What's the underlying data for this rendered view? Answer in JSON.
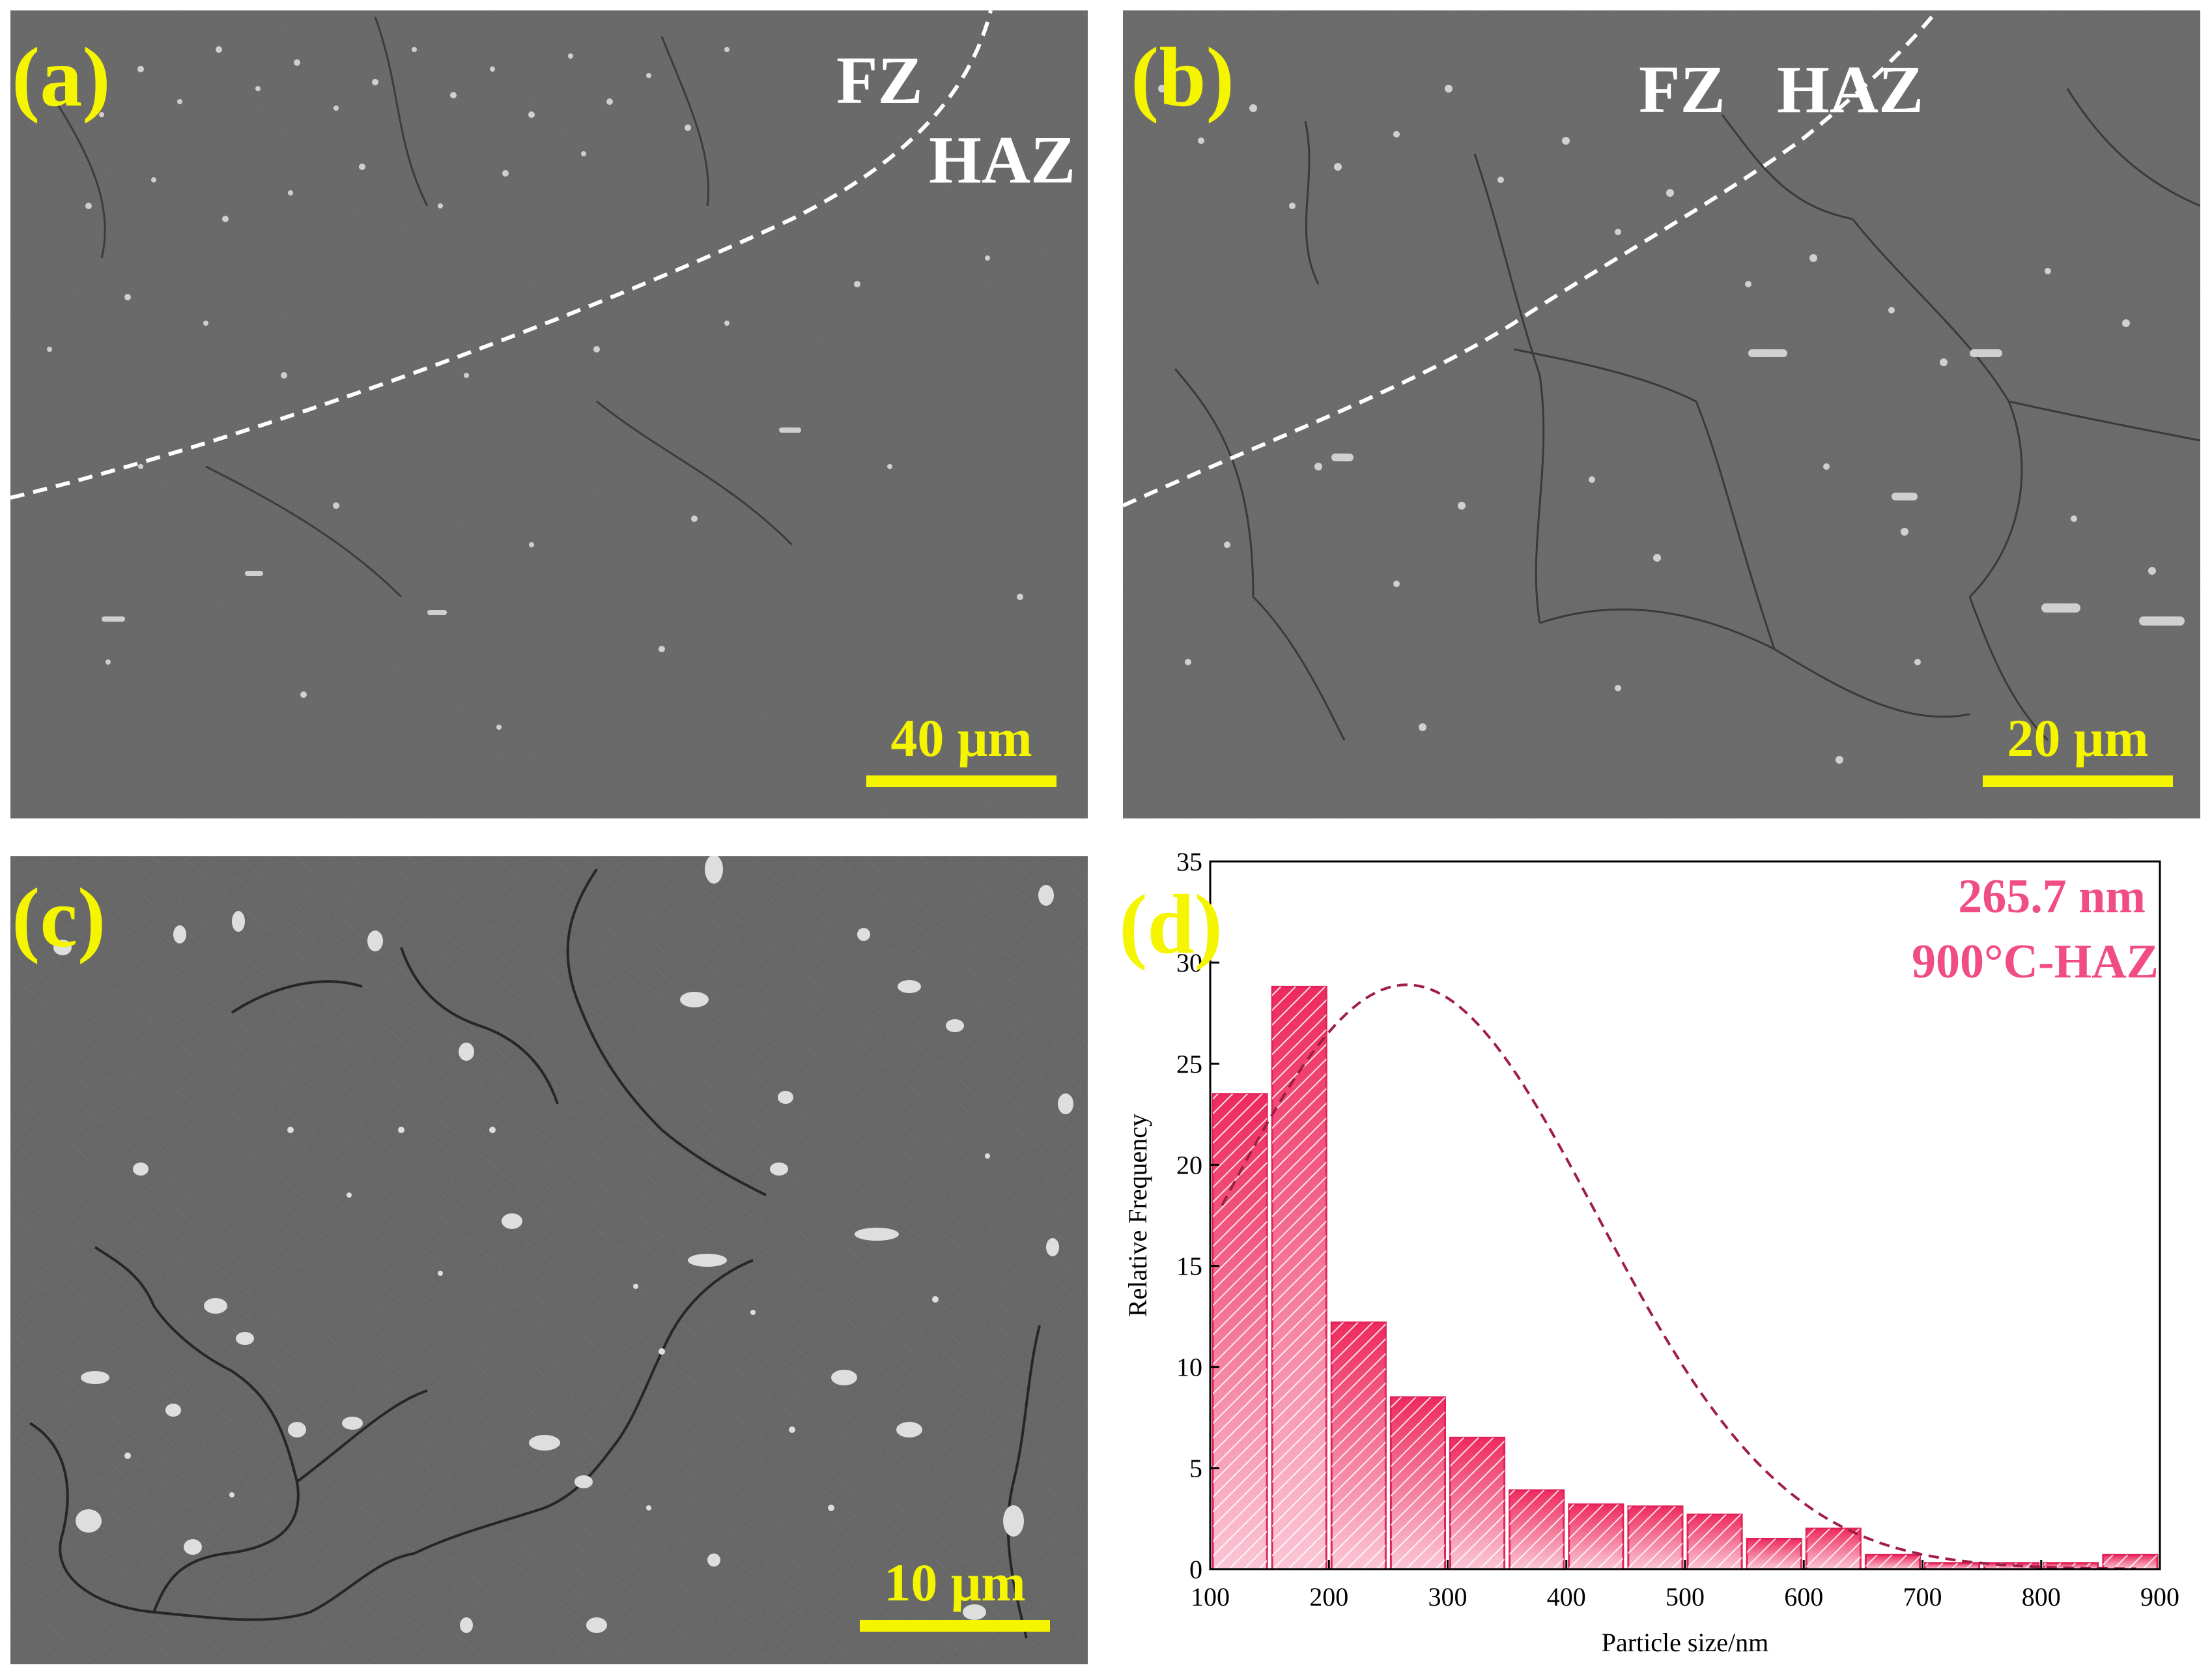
{
  "panels": {
    "a": {
      "label": "(a)",
      "zone_left": "FZ",
      "zone_right": "HAZ",
      "scale": "40 μm"
    },
    "b": {
      "label": "(b)",
      "zone_left": "FZ",
      "zone_right": "HAZ",
      "scale": "20 μm"
    },
    "c": {
      "label": "(c)",
      "scale": "10 μm"
    },
    "d": {
      "label": "(d)",
      "annotation_1": "265.7 nm",
      "annotation_2": "900°C-HAZ"
    }
  },
  "colors": {
    "label_yellow": "#f5f500",
    "bar_fill": "#f0406e",
    "annotation_pink": "#f04e82",
    "fit_curve": "#a01e46"
  },
  "chart_data": {
    "type": "bar",
    "xlabel": "Particle size/nm",
    "ylabel": "Relative Frequency",
    "xlim": [
      100,
      900
    ],
    "ylim": [
      0,
      35
    ],
    "xticks": [
      100,
      200,
      300,
      400,
      500,
      600,
      700,
      800,
      900
    ],
    "yticks": [
      0,
      5,
      10,
      15,
      20,
      25,
      30,
      35
    ],
    "bin_width": 50,
    "x": [
      125,
      175,
      225,
      275,
      325,
      375,
      425,
      475,
      525,
      575,
      625,
      675,
      725,
      775,
      825,
      875
    ],
    "values": [
      23.5,
      28.8,
      12.2,
      8.5,
      6.5,
      3.9,
      3.2,
      3.1,
      2.7,
      1.5,
      2.0,
      0.7,
      0.3,
      0.3,
      0.3,
      0.7
    ],
    "fit": {
      "type": "gaussian",
      "mean": 265.7,
      "peak": 28.9,
      "sigma": 160
    },
    "grid": false
  }
}
